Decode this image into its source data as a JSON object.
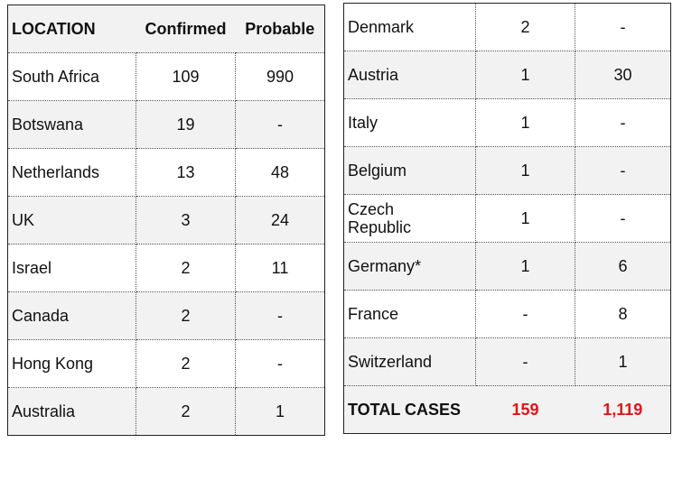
{
  "left_table": {
    "headers": [
      "LOCATION",
      "Confirmed",
      "Probable"
    ],
    "rows": [
      {
        "location": "South Africa",
        "confirmed": "109",
        "probable": "990"
      },
      {
        "location": "Botswana",
        "confirmed": "19",
        "probable": "-"
      },
      {
        "location": "Netherlands",
        "confirmed": "13",
        "probable": "48"
      },
      {
        "location": "UK",
        "confirmed": "3",
        "probable": "24"
      },
      {
        "location": "Israel",
        "confirmed": "2",
        "probable": "11"
      },
      {
        "location": "Canada",
        "confirmed": "2",
        "probable": "-"
      },
      {
        "location": "Hong Kong",
        "confirmed": "2",
        "probable": "-"
      },
      {
        "location": "Australia",
        "confirmed": "2",
        "probable": "1"
      }
    ]
  },
  "right_table": {
    "rows": [
      {
        "location": "Denmark",
        "confirmed": "2",
        "probable": "-"
      },
      {
        "location": "Austria",
        "confirmed": "1",
        "probable": "30"
      },
      {
        "location": "Italy",
        "confirmed": "1",
        "probable": "-"
      },
      {
        "location": "Belgium",
        "confirmed": "1",
        "probable": "-"
      },
      {
        "location": "Czech Republic",
        "confirmed": "1",
        "probable": "-"
      },
      {
        "location": "Germany*",
        "confirmed": "1",
        "probable": "6"
      },
      {
        "location": "France",
        "confirmed": "-",
        "probable": "8"
      },
      {
        "location": "Switzerland",
        "confirmed": "-",
        "probable": "1"
      }
    ],
    "total": {
      "label": "TOTAL CASES",
      "confirmed": "159",
      "probable": "1,119"
    }
  },
  "colors": {
    "total_values": "#e0151b",
    "shaded_row": "#f2f2f2"
  }
}
